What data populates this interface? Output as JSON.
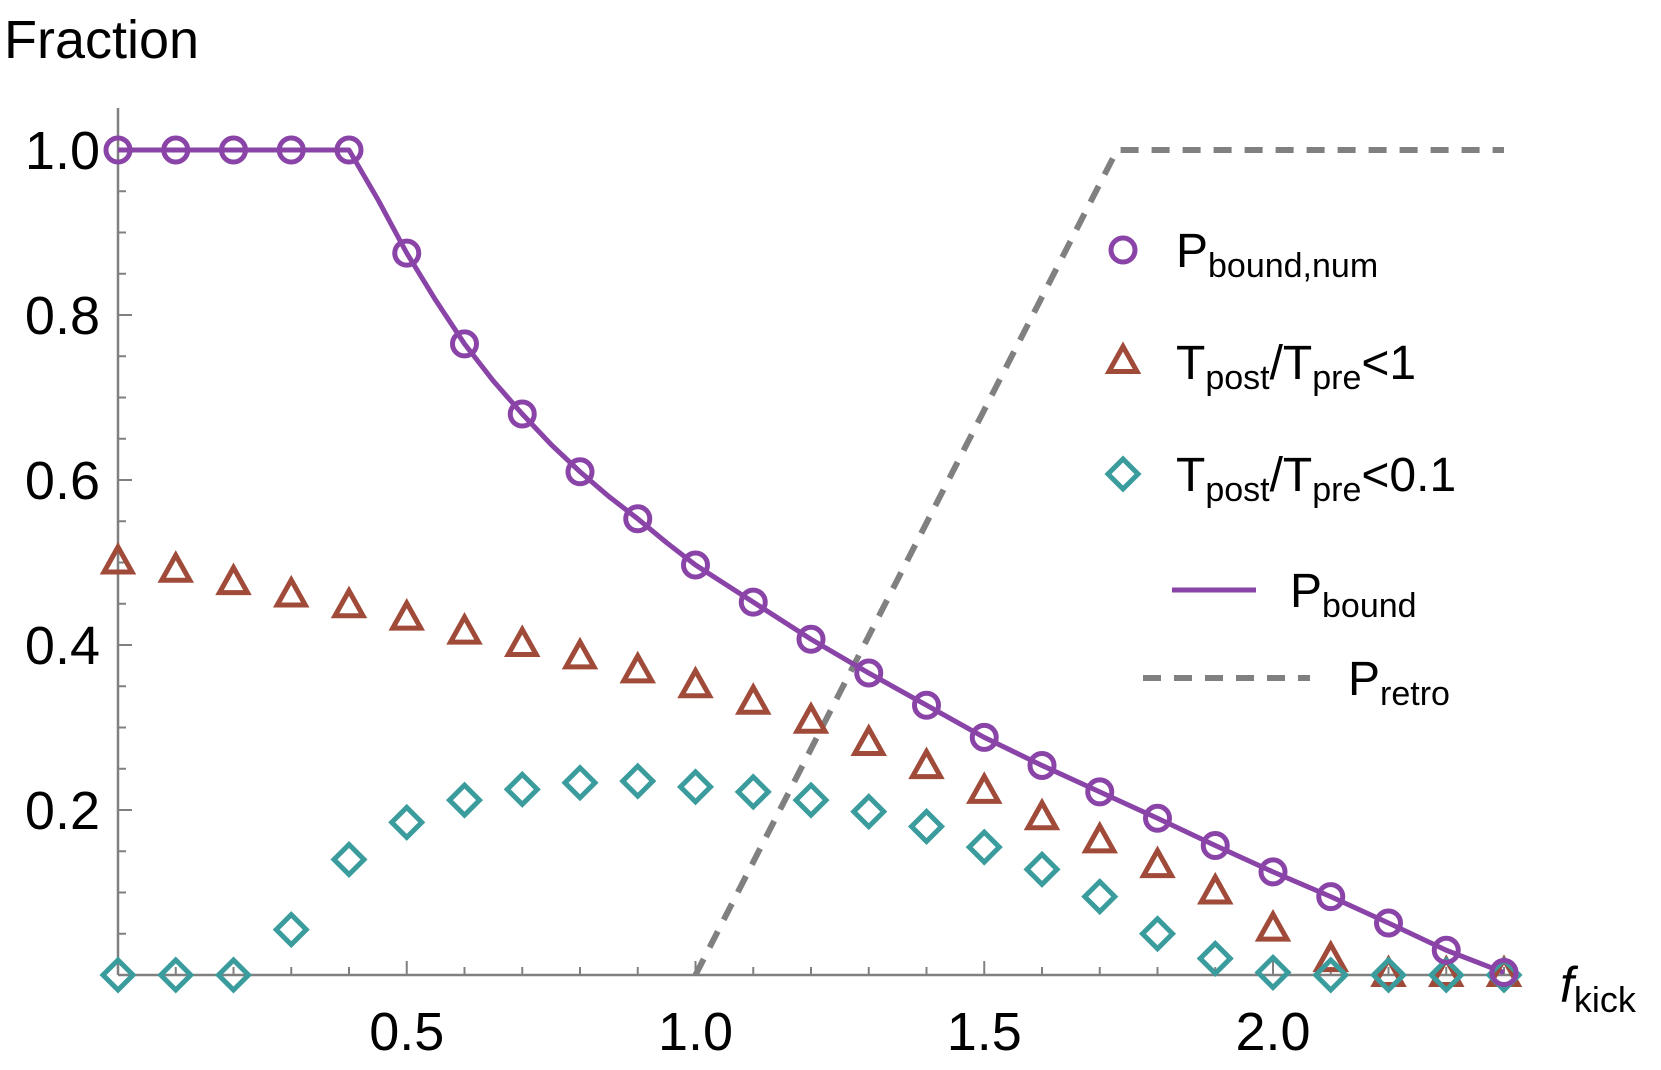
{
  "chart_data": {
    "type": "scatter",
    "xlabel": {
      "main": "f",
      "sub": "kick"
    },
    "ylabel": "Fraction",
    "xlim": [
      0,
      2.4
    ],
    "ylim": [
      0,
      1.0
    ],
    "x_ticks": [
      {
        "value": 0.5,
        "label": "0.5"
      },
      {
        "value": 1.0,
        "label": "1.0"
      },
      {
        "value": 1.5,
        "label": "1.5"
      },
      {
        "value": 2.0,
        "label": "2.0"
      }
    ],
    "y_ticks": [
      {
        "value": 0.2,
        "label": "0.2"
      },
      {
        "value": 0.4,
        "label": "0.4"
      },
      {
        "value": 0.6,
        "label": "0.6"
      },
      {
        "value": 0.8,
        "label": "0.8"
      },
      {
        "value": 1.0,
        "label": "1.0"
      }
    ],
    "grid": false,
    "legend_position": "right",
    "series": [
      {
        "key": "pbound_num",
        "legend_main": "P",
        "legend_sub": "bound,num",
        "legend_tail": "",
        "marker": "circle",
        "color": "#8A44A8",
        "x": [
          0,
          0.1,
          0.2,
          0.3,
          0.4,
          0.5,
          0.6,
          0.7,
          0.8,
          0.9,
          1.0,
          1.1,
          1.2,
          1.3,
          1.4,
          1.5,
          1.6,
          1.7,
          1.8,
          1.9,
          2.0,
          2.1,
          2.2,
          2.3,
          2.4
        ],
        "y": [
          1.0,
          1.0,
          1.0,
          1.0,
          1.0,
          0.875,
          0.765,
          0.68,
          0.61,
          0.553,
          0.497,
          0.452,
          0.407,
          0.366,
          0.327,
          0.288,
          0.254,
          0.222,
          0.19,
          0.157,
          0.125,
          0.095,
          0.063,
          0.03,
          0.003
        ]
      },
      {
        "key": "tpost_lt1",
        "legend_main": "T",
        "legend_sub": "post",
        "legend_mid": "/T",
        "legend_sub2": "pre",
        "legend_tail": "<1",
        "marker": "triangle",
        "color": "#A04B3A",
        "x": [
          0,
          0.1,
          0.2,
          0.3,
          0.4,
          0.5,
          0.6,
          0.7,
          0.8,
          0.9,
          1.0,
          1.1,
          1.2,
          1.3,
          1.4,
          1.5,
          1.6,
          1.7,
          1.8,
          1.9,
          2.0,
          2.1,
          2.2,
          2.3,
          2.4
        ],
        "y": [
          0.5,
          0.49,
          0.475,
          0.46,
          0.447,
          0.432,
          0.415,
          0.4,
          0.385,
          0.368,
          0.35,
          0.33,
          0.307,
          0.28,
          0.252,
          0.222,
          0.19,
          0.162,
          0.132,
          0.1,
          0.055,
          0.018,
          0.0,
          0.0,
          0.0
        ]
      },
      {
        "key": "tpost_lt01",
        "legend_main": "T",
        "legend_sub": "post",
        "legend_mid": "/T",
        "legend_sub2": "pre",
        "legend_tail": "<0.1",
        "marker": "diamond",
        "color": "#3A9C9C",
        "x": [
          0,
          0.1,
          0.2,
          0.3,
          0.4,
          0.5,
          0.6,
          0.7,
          0.8,
          0.9,
          1.0,
          1.1,
          1.2,
          1.3,
          1.4,
          1.5,
          1.6,
          1.7,
          1.8,
          1.9,
          2.0,
          2.1,
          2.2,
          2.3,
          2.4
        ],
        "y": [
          0.0,
          0.0,
          0.0,
          0.055,
          0.14,
          0.185,
          0.212,
          0.225,
          0.233,
          0.235,
          0.228,
          0.222,
          0.212,
          0.198,
          0.18,
          0.155,
          0.128,
          0.095,
          0.05,
          0.02,
          0.003,
          0.0,
          0.0,
          0.0,
          0.0
        ]
      },
      {
        "key": "pbound",
        "legend_main": "P",
        "legend_sub": "bound",
        "legend_tail": "",
        "marker": "line",
        "color": "#8A44A8",
        "x": [
          0,
          0.4,
          0.45,
          0.5,
          0.55,
          0.6,
          0.65,
          0.7,
          0.75,
          0.8,
          0.85,
          0.9,
          0.95,
          1.0,
          1.1,
          1.2,
          1.3,
          1.4,
          1.5,
          1.6,
          1.7,
          1.8,
          1.9,
          2.0,
          2.1,
          2.2,
          2.3,
          2.4
        ],
        "y": [
          1.0,
          1.0,
          0.94,
          0.875,
          0.818,
          0.765,
          0.72,
          0.68,
          0.643,
          0.61,
          0.58,
          0.553,
          0.524,
          0.497,
          0.452,
          0.407,
          0.366,
          0.327,
          0.288,
          0.254,
          0.222,
          0.19,
          0.157,
          0.125,
          0.095,
          0.063,
          0.03,
          0.003
        ]
      },
      {
        "key": "pretro",
        "legend_main": "P",
        "legend_sub": "retro",
        "legend_tail": "",
        "marker": "dashed",
        "color": "#808080",
        "x": [
          1.0,
          1.73,
          2.4
        ],
        "y": [
          0.0,
          1.0,
          1.0
        ]
      }
    ]
  }
}
